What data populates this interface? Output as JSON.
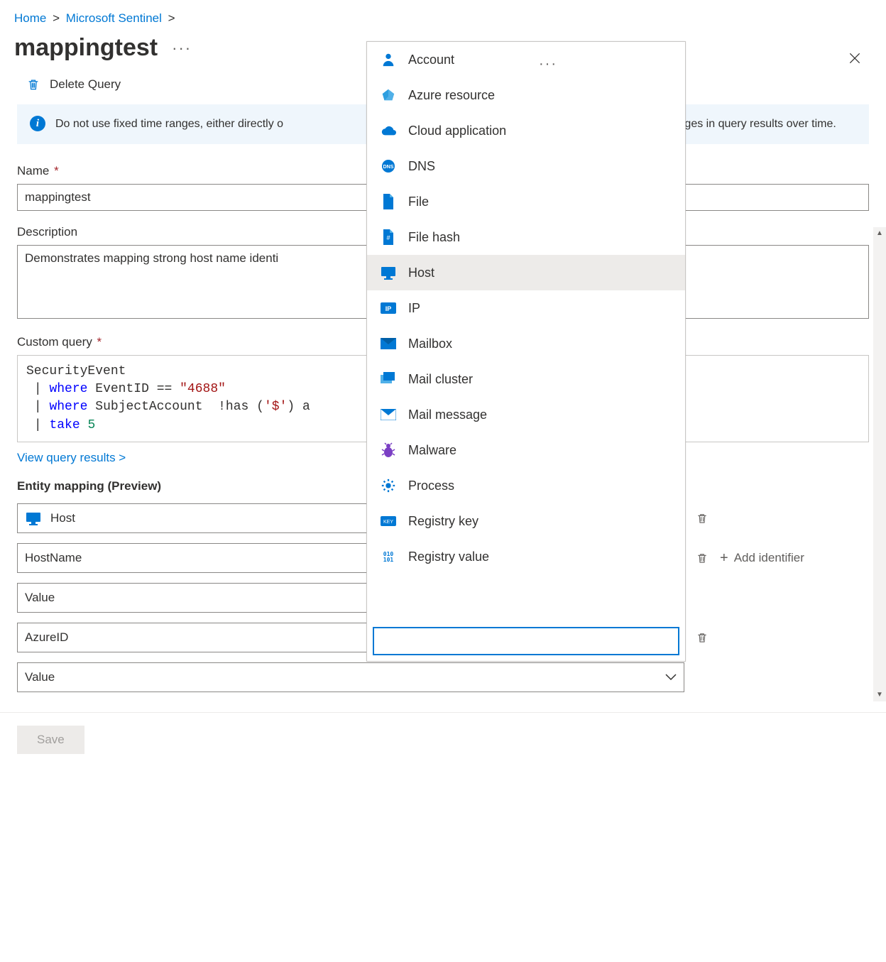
{
  "breadcrumb": {
    "home": "Home",
    "sentinel": "Microsoft Sentinel"
  },
  "title": "mappingtest",
  "toolbar": {
    "delete_label": "Delete Query"
  },
  "banner": {
    "text_before": "Do not use fixed time ranges, either directly o",
    "text_after": "t show changes in query results over time."
  },
  "fields": {
    "name_label": "Name",
    "name_value": "mappingtest",
    "desc_label": "Description",
    "desc_value": "Demonstrates mapping strong host name identi",
    "query_label": "Custom query"
  },
  "query_tokens": {
    "l1": "SecurityEvent",
    "l2_kw1": "where",
    "l2_id": "EventID",
    "l2_op": "==",
    "l2_str": "\"4688\"",
    "l3_kw1": "where",
    "l3_id": "SubjectAccount",
    "l3_op": "!has",
    "l3_paren_open": "(",
    "l3_str": "'$'",
    "l3_paren_close": ")",
    "l3_tail": "a",
    "l4_kw1": "take",
    "l4_num": "5"
  },
  "links": {
    "view_results": "View query results  >"
  },
  "entity_mapping": {
    "heading": "Entity mapping (Preview)",
    "rows": [
      {
        "label": "Host",
        "has_icon": true,
        "trash": true
      },
      {
        "label": "HostName",
        "has_icon": false,
        "trash": true,
        "add_identifier": true
      },
      {
        "label": "Value",
        "has_icon": false,
        "trash": false
      },
      {
        "label": "AzureID",
        "has_icon": false,
        "trash": true
      },
      {
        "label": "Value",
        "has_icon": false,
        "trash": false
      }
    ],
    "add_identifier_label": "Add identifier"
  },
  "footer": {
    "save_label": "Save"
  },
  "dropdown": {
    "search_value": "",
    "hovered_index": 6,
    "items": [
      {
        "label": "Account",
        "icon": "account",
        "color": "#0078d4"
      },
      {
        "label": "Azure resource",
        "icon": "azure",
        "color": "#50b0e8"
      },
      {
        "label": "Cloud application",
        "icon": "cloud",
        "color": "#0078d4"
      },
      {
        "label": "DNS",
        "icon": "dns",
        "color": "#0078d4"
      },
      {
        "label": "File",
        "icon": "file",
        "color": "#0078d4"
      },
      {
        "label": "File hash",
        "icon": "filehash",
        "color": "#0078d4"
      },
      {
        "label": "Host",
        "icon": "host",
        "color": "#0078d4"
      },
      {
        "label": "IP",
        "icon": "ip",
        "color": "#0078d4"
      },
      {
        "label": "Mailbox",
        "icon": "mailbox",
        "color": "#0078d4"
      },
      {
        "label": "Mail cluster",
        "icon": "mailcluster",
        "color": "#0078d4"
      },
      {
        "label": "Mail message",
        "icon": "mailmsg",
        "color": "#0078d4"
      },
      {
        "label": "Malware",
        "icon": "malware",
        "color": "#7b3fc4"
      },
      {
        "label": "Process",
        "icon": "process",
        "color": "#0078d4"
      },
      {
        "label": "Registry key",
        "icon": "regkey",
        "color": "#0078d4"
      },
      {
        "label": "Registry value",
        "icon": "regval",
        "color": "#0078d4"
      }
    ]
  },
  "colors": {
    "accent": "#0078d4",
    "banner_bg": "#eff6fc",
    "required": "#a4262c"
  }
}
